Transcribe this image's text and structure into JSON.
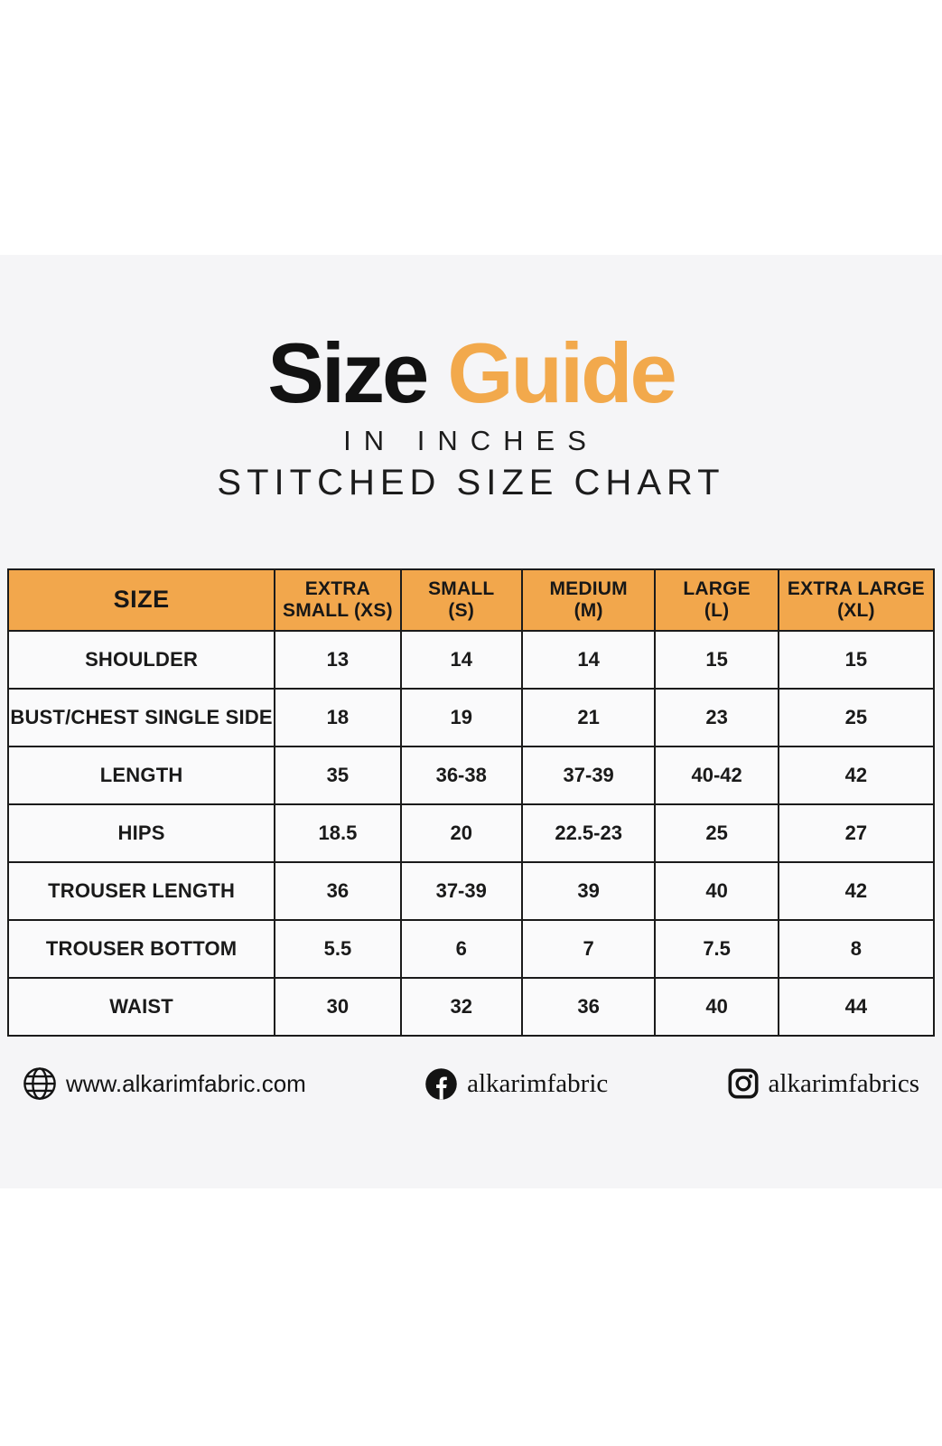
{
  "header": {
    "title_black": "Size",
    "title_orange": "Guide",
    "subtitle_units": "IN INCHES",
    "subtitle_chart": "STITCHED SIZE CHART"
  },
  "chart_data": {
    "type": "table",
    "title": "Size Guide",
    "subtitle": "In Inches — Stitched Size Chart",
    "units": "inches",
    "columns": [
      "SIZE",
      "EXTRA\nSMALL (XS)",
      "SMALL\n(S)",
      "MEDIUM\n(M)",
      "LARGE\n(L)",
      "EXTRA LARGE\n(XL)"
    ],
    "rows": [
      {
        "label": "SHOULDER",
        "values": [
          "13",
          "14",
          "14",
          "15",
          "15"
        ]
      },
      {
        "label": "BUST/CHEST SINGLE SIDE",
        "values": [
          "18",
          "19",
          "21",
          "23",
          "25"
        ]
      },
      {
        "label": "LENGTH",
        "values": [
          "35",
          "36-38",
          "37-39",
          "40-42",
          "42"
        ]
      },
      {
        "label": "HIPS",
        "values": [
          "18.5",
          "20",
          "22.5-23",
          "25",
          "27"
        ]
      },
      {
        "label": "TROUSER LENGTH",
        "values": [
          "36",
          "37-39",
          "39",
          "40",
          "42"
        ]
      },
      {
        "label": "TROUSER BOTTOM",
        "values": [
          "5.5",
          "6",
          "7",
          "7.5",
          "8"
        ]
      },
      {
        "label": "WAIST",
        "values": [
          "30",
          "32",
          "36",
          "40",
          "44"
        ]
      }
    ]
  },
  "footer": {
    "website": {
      "icon": "globe-icon",
      "text": "www.alkarimfabric.com"
    },
    "facebook": {
      "icon": "facebook-icon",
      "text": "alkarimfabric"
    },
    "instagram": {
      "icon": "instagram-icon",
      "text": "alkarimfabrics"
    }
  },
  "colors": {
    "accent_orange": "#F2A94C",
    "table_header_orange": "#F2A74C",
    "text_black": "#161616",
    "canvas_gray": "#F5F5F7",
    "cell_background": "#FAFAFB",
    "border_black": "#1B1B1B"
  }
}
